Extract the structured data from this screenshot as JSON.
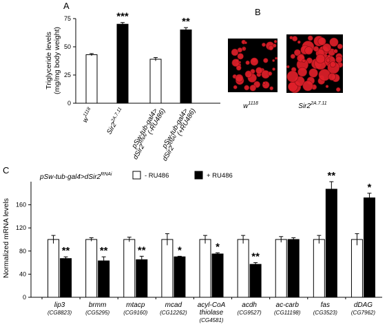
{
  "panels": {
    "a_letter": "A",
    "b_letter": "B",
    "c_letter": "C"
  },
  "colors": {
    "bar_treated": "#000000",
    "bar_control": "#ffffff",
    "stroke": "#000000",
    "fat_droplets": "#e0202a",
    "micrograph_bg": "#000000"
  },
  "chart_data": [
    {
      "type": "bar",
      "panel": "A",
      "ylabel_line1": "Triglyceride levels",
      "ylabel_line2": "(mg/mg body weight)",
      "ylim": [
        0,
        75
      ],
      "yticks": [
        0,
        25,
        50,
        75
      ],
      "categories": [
        {
          "main": "w",
          "sup": "1118",
          "line2": "",
          "line2_sup": "",
          "line2_tail": ""
        },
        {
          "main": "Sir2",
          "sup": "2A.7.11",
          "line2": "",
          "line2_sup": "",
          "line2_tail": ""
        },
        {
          "main": "pSw-tub-gal4>",
          "sup": "",
          "line2": "dSir2",
          "line2_sup": "RNAi",
          "line2_tail": " (-RU486)"
        },
        {
          "main": "pSw-tub-gal4>",
          "sup": "",
          "line2": "dSir2",
          "line2_sup": "RNAi",
          "line2_tail": " (+RU486)"
        }
      ],
      "values": [
        43,
        70,
        39,
        65
      ],
      "errors": [
        1,
        1.5,
        1.5,
        2
      ],
      "fills": [
        "white",
        "black",
        "white",
        "black"
      ],
      "significance": [
        "",
        "***",
        "",
        "**"
      ]
    },
    {
      "type": "bar",
      "panel": "C",
      "title_main": "pSw-tub-gal4>dSir2",
      "title_sup": "RNAi",
      "ylabel": "Normalized mRNA levels",
      "ylim": [
        0,
        200
      ],
      "yticks": [
        0,
        40,
        80,
        120,
        160
      ],
      "legend": {
        "control": "- RU486",
        "treated": "+ RU486"
      },
      "categories": [
        {
          "name": "lip3",
          "name2": "",
          "cg": "(CG8823)"
        },
        {
          "name": "brmm",
          "name2": "",
          "cg": "(CG5295)"
        },
        {
          "name": "mtacp",
          "name2": "",
          "cg": "(CG9160)"
        },
        {
          "name": "mcad",
          "name2": "",
          "cg": "(CG12262)"
        },
        {
          "name": "acyl-CoA",
          "name2": "thiolase",
          "cg": "(CG4581)"
        },
        {
          "name": "acdh",
          "name2": "",
          "cg": "(CG9527)"
        },
        {
          "name": "ac-carb",
          "name2": "",
          "cg": "(CG11198)"
        },
        {
          "name": "fas",
          "name2": "",
          "cg": "(CG3523)"
        },
        {
          "name": "dDAG",
          "name2": "",
          "cg": "(CG7962)"
        }
      ],
      "series": [
        {
          "name": "- RU486",
          "values": [
            100,
            100,
            100,
            100,
            100,
            100,
            100,
            100,
            100
          ],
          "errors": [
            7,
            3,
            4,
            10,
            7,
            7,
            5,
            7,
            10
          ]
        },
        {
          "name": "+ RU486",
          "values": [
            67,
            63,
            65,
            70,
            75,
            57,
            100,
            187,
            172
          ],
          "errors": [
            3,
            7,
            6,
            1,
            2,
            3,
            3,
            13,
            8
          ]
        }
      ],
      "significance": [
        "**",
        "**",
        "**",
        "*",
        "*",
        "**",
        "",
        "**",
        "*"
      ]
    }
  ],
  "panel_b": {
    "captions": [
      {
        "main": "w",
        "sup": "1118"
      },
      {
        "main": "Sir2",
        "sup": "2A.7.11"
      }
    ]
  }
}
